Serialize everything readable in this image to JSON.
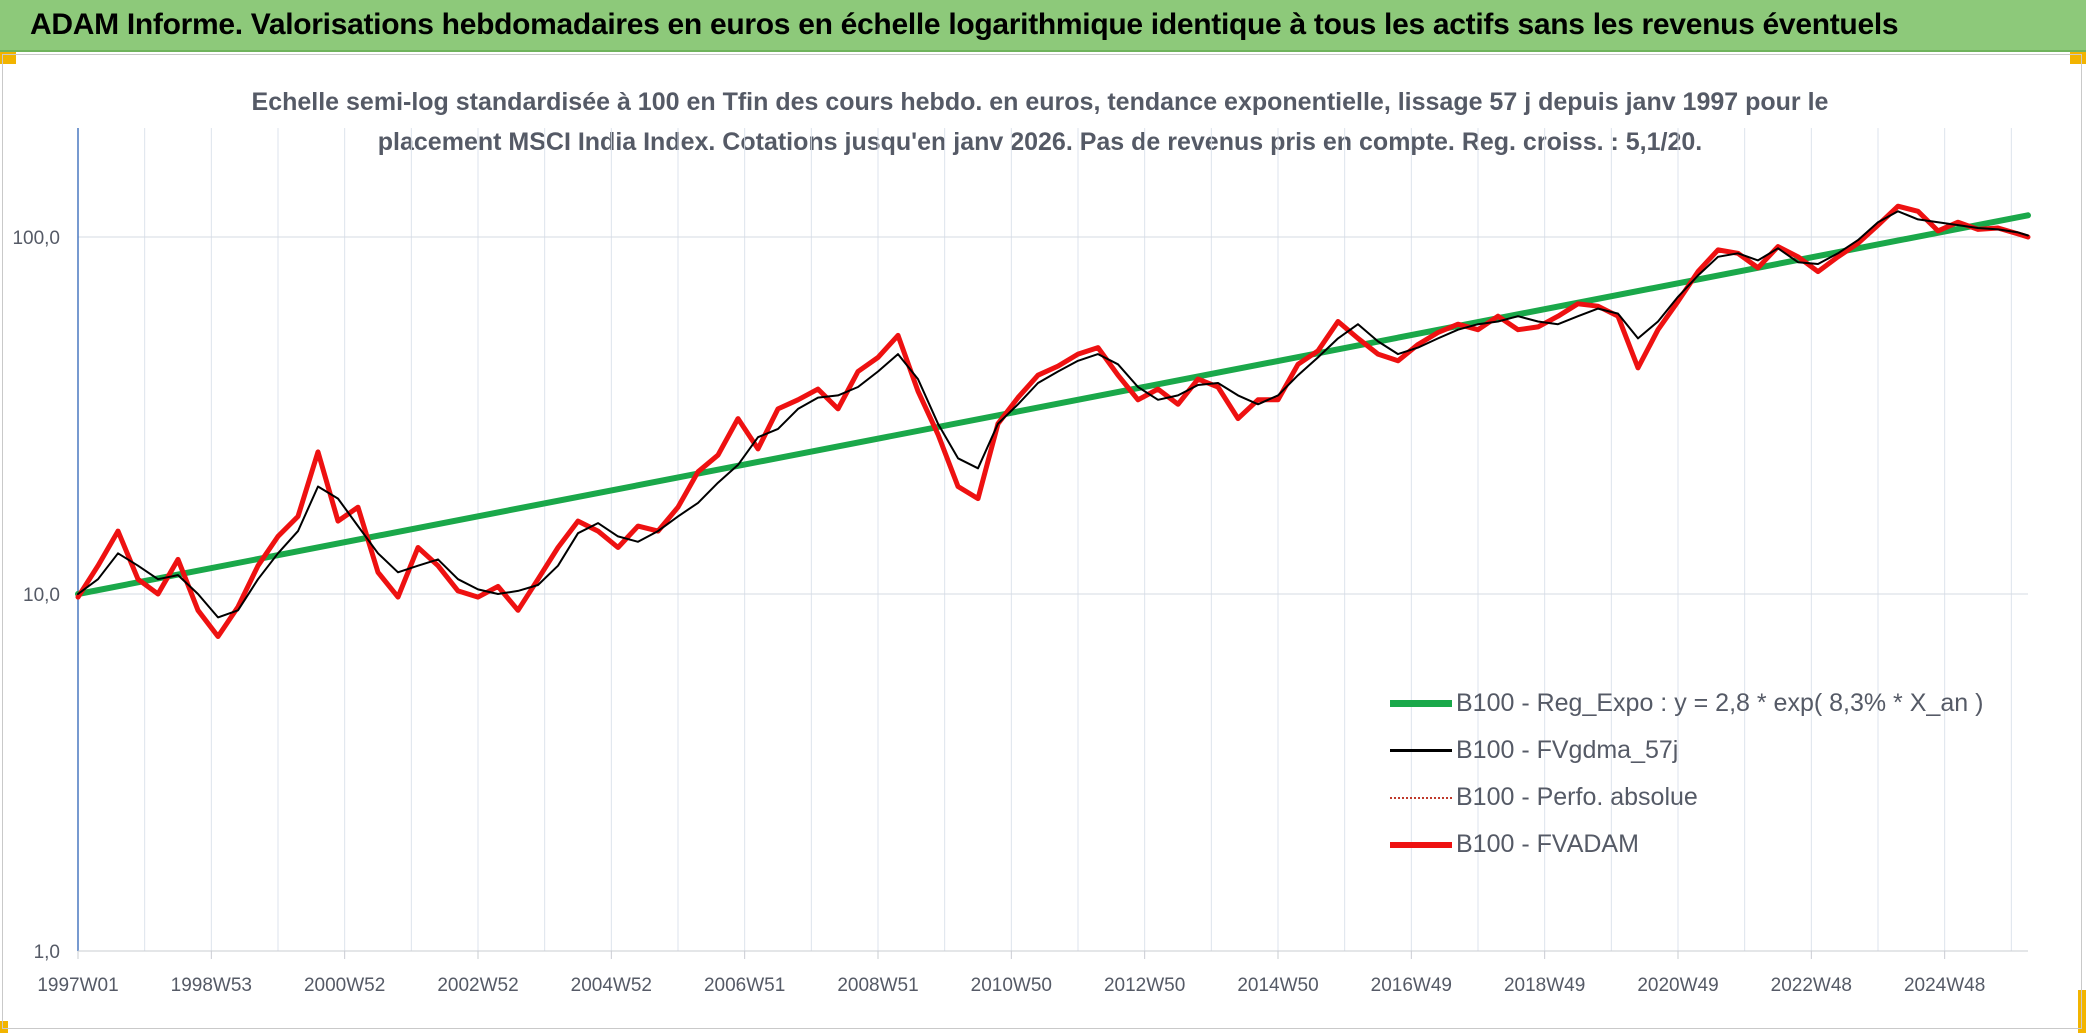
{
  "header": {
    "title": "ADAM Informe. Valorisations hebdomadaires en euros en échelle logarithmique identique à tous les actifs sans les revenus éventuels"
  },
  "colors": {
    "banner": "#8dc97a",
    "regression": "#1aa84a",
    "moving_average": "#000000",
    "absolute": "#c0392b",
    "fvadam": "#ee1111"
  },
  "chart_data": {
    "type": "line",
    "title": "Echelle semi-log standardisée à 100 en Tfin des cours hebdo. en euros, tendance exponentielle, lissage 57 j depuis janv 1997 pour le placement MSCI India Index. Cotations jusqu'en janv 2026. Pas de revenus pris en compte. Reg. croiss. : 5,1/20.",
    "title_lines": [
      "Echelle semi-log standardisée à 100 en Tfin des cours hebdo. en euros, tendance exponentielle, lissage 57 j depuis janv 1997 pour le",
      "placement MSCI India Index. Cotations jusqu'en janv 2026. Pas de revenus pris en compte. Reg. croiss. : 5,1/20."
    ],
    "y_scale": "log",
    "ylim": [
      1,
      200
    ],
    "y_ticks": [
      {
        "value": 1,
        "label": "1,0"
      },
      {
        "value": 10,
        "label": "10,0"
      },
      {
        "value": 100,
        "label": "100,0"
      }
    ],
    "xlim": [
      1997.0,
      2026.25
    ],
    "x_ticks": [
      {
        "value": 1997.0,
        "label": "1997W01"
      },
      {
        "value": 1999.0,
        "label": "1998W53"
      },
      {
        "value": 2001.0,
        "label": "2000W52"
      },
      {
        "value": 2003.0,
        "label": "2002W52"
      },
      {
        "value": 2005.0,
        "label": "2004W52"
      },
      {
        "value": 2007.0,
        "label": "2006W51"
      },
      {
        "value": 2009.0,
        "label": "2008W51"
      },
      {
        "value": 2011.0,
        "label": "2010W50"
      },
      {
        "value": 2013.0,
        "label": "2012W50"
      },
      {
        "value": 2015.0,
        "label": "2014W50"
      },
      {
        "value": 2017.0,
        "label": "2016W49"
      },
      {
        "value": 2019.0,
        "label": "2018W49"
      },
      {
        "value": 2021.0,
        "label": "2020W49"
      },
      {
        "value": 2023.0,
        "label": "2022W48"
      },
      {
        "value": 2025.0,
        "label": "2024W48"
      }
    ],
    "grid": true,
    "legend_position": "bottom-right",
    "series": [
      {
        "name": "B100 - Reg_Expo : y = 2,8 * exp( 8,3% *  X_an )",
        "role": "regression",
        "x": [
          1997.0,
          2026.25
        ],
        "y": [
          10.0,
          115.0
        ]
      },
      {
        "name": "B100 - FVgdma_57j",
        "role": "moving_average",
        "x": [
          1997.0,
          1997.3,
          1997.6,
          1997.9,
          1998.2,
          1998.5,
          1998.8,
          1999.1,
          1999.4,
          1999.7,
          2000.0,
          2000.3,
          2000.6,
          2000.9,
          2001.2,
          2001.5,
          2001.8,
          2002.1,
          2002.4,
          2002.7,
          2003.0,
          2003.3,
          2003.6,
          2003.9,
          2004.2,
          2004.5,
          2004.8,
          2005.1,
          2005.4,
          2005.7,
          2006.0,
          2006.3,
          2006.6,
          2006.9,
          2007.2,
          2007.5,
          2007.8,
          2008.1,
          2008.4,
          2008.7,
          2009.0,
          2009.3,
          2009.6,
          2009.9,
          2010.2,
          2010.5,
          2010.8,
          2011.1,
          2011.4,
          2011.7,
          2012.0,
          2012.3,
          2012.6,
          2012.9,
          2013.2,
          2013.5,
          2013.8,
          2014.1,
          2014.4,
          2014.7,
          2015.0,
          2015.3,
          2015.6,
          2015.9,
          2016.2,
          2016.5,
          2016.8,
          2017.1,
          2017.4,
          2017.7,
          2018.0,
          2018.3,
          2018.6,
          2018.9,
          2019.2,
          2019.5,
          2019.8,
          2020.1,
          2020.4,
          2020.7,
          2021.0,
          2021.3,
          2021.6,
          2021.9,
          2022.2,
          2022.5,
          2022.8,
          2023.1,
          2023.4,
          2023.7,
          2024.0,
          2024.3,
          2024.6,
          2024.9,
          2025.2,
          2025.5,
          2025.8,
          2026.1,
          2026.25
        ],
        "y": [
          10.0,
          11.0,
          13.0,
          12.0,
          11.0,
          11.3,
          10.0,
          8.6,
          9.0,
          11.0,
          13.0,
          15.0,
          20.0,
          18.5,
          15.5,
          13.0,
          11.5,
          12.0,
          12.5,
          11.0,
          10.3,
          10.0,
          10.2,
          10.6,
          12.0,
          14.8,
          15.8,
          14.5,
          14.0,
          15.0,
          16.5,
          18.0,
          20.5,
          23.0,
          27.5,
          29.0,
          33.0,
          35.5,
          36.0,
          38.0,
          42.0,
          47.0,
          40.0,
          30.0,
          24.0,
          22.5,
          30.0,
          34.0,
          39.0,
          42.0,
          45.0,
          47.0,
          44.0,
          38.0,
          35.0,
          36.0,
          38.5,
          39.0,
          36.0,
          34.0,
          36.0,
          41.0,
          46.0,
          52.0,
          57.0,
          51.0,
          47.0,
          49.0,
          52.0,
          55.0,
          57.0,
          58.0,
          60.0,
          58.0,
          57.0,
          60.0,
          63.0,
          61.0,
          52.0,
          58.0,
          68.0,
          78.0,
          88.0,
          90.0,
          86.0,
          93.0,
          85.0,
          84.0,
          90.0,
          98.0,
          110.0,
          118.0,
          112.0,
          110.0,
          108.0,
          106.0,
          105.0,
          103.0,
          101.0
        ]
      },
      {
        "name": "B100 - Perfo. absolue",
        "role": "absolute",
        "x": [],
        "y": []
      },
      {
        "name": "B100 - FVADAM",
        "role": "fvadam",
        "x": [
          1997.0,
          1997.3,
          1997.6,
          1997.9,
          1998.2,
          1998.5,
          1998.8,
          1999.1,
          1999.4,
          1999.7,
          2000.0,
          2000.3,
          2000.6,
          2000.9,
          2001.2,
          2001.5,
          2001.8,
          2002.1,
          2002.4,
          2002.7,
          2003.0,
          2003.3,
          2003.6,
          2003.9,
          2004.2,
          2004.5,
          2004.8,
          2005.1,
          2005.4,
          2005.7,
          2006.0,
          2006.3,
          2006.6,
          2006.9,
          2007.2,
          2007.5,
          2007.8,
          2008.1,
          2008.4,
          2008.7,
          2009.0,
          2009.3,
          2009.6,
          2009.9,
          2010.2,
          2010.5,
          2010.8,
          2011.1,
          2011.4,
          2011.7,
          2012.0,
          2012.3,
          2012.6,
          2012.9,
          2013.2,
          2013.5,
          2013.8,
          2014.1,
          2014.4,
          2014.7,
          2015.0,
          2015.3,
          2015.6,
          2015.9,
          2016.2,
          2016.5,
          2016.8,
          2017.1,
          2017.4,
          2017.7,
          2018.0,
          2018.3,
          2018.6,
          2018.9,
          2019.2,
          2019.5,
          2019.8,
          2020.1,
          2020.4,
          2020.7,
          2021.0,
          2021.3,
          2021.6,
          2021.9,
          2022.2,
          2022.5,
          2022.8,
          2023.1,
          2023.4,
          2023.7,
          2024.0,
          2024.3,
          2024.6,
          2024.9,
          2025.2,
          2025.5,
          2025.8,
          2026.1,
          2026.25
        ],
        "y": [
          9.8,
          12.0,
          15.0,
          11.0,
          10.0,
          12.5,
          9.0,
          7.6,
          9.2,
          12.0,
          14.5,
          16.5,
          25.0,
          16.0,
          17.5,
          11.5,
          9.8,
          13.5,
          12.0,
          10.2,
          9.8,
          10.5,
          9.0,
          11.0,
          13.5,
          16.0,
          15.0,
          13.5,
          15.5,
          15.0,
          17.5,
          22.0,
          24.5,
          31.0,
          25.5,
          33.0,
          35.0,
          37.5,
          33.0,
          42.0,
          46.0,
          53.0,
          37.0,
          28.0,
          20.0,
          18.5,
          30.0,
          35.5,
          41.0,
          43.5,
          47.0,
          49.0,
          41.0,
          35.0,
          37.5,
          34.0,
          40.0,
          38.0,
          31.0,
          35.0,
          35.0,
          44.0,
          48.0,
          58.0,
          52.0,
          47.0,
          45.0,
          50.0,
          54.0,
          57.0,
          55.0,
          60.0,
          55.0,
          56.0,
          60.0,
          65.0,
          64.0,
          60.0,
          43.0,
          55.0,
          66.0,
          80.0,
          92.0,
          90.0,
          82.0,
          94.0,
          88.0,
          80.0,
          88.0,
          96.0,
          108.0,
          122.0,
          118.0,
          104.0,
          110.0,
          105.0,
          106.0,
          102.0,
          100.0
        ]
      }
    ]
  }
}
